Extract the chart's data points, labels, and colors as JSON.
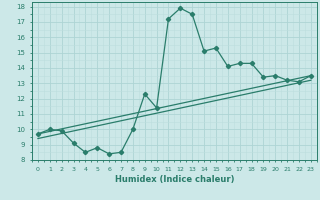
{
  "xlabel": "Humidex (Indice chaleur)",
  "ylabel": "",
  "xlim": [
    -0.5,
    23.5
  ],
  "ylim": [
    8,
    18.3
  ],
  "yticks": [
    8,
    9,
    10,
    11,
    12,
    13,
    14,
    15,
    16,
    17,
    18
  ],
  "xticks": [
    0,
    1,
    2,
    3,
    4,
    5,
    6,
    7,
    8,
    9,
    10,
    11,
    12,
    13,
    14,
    15,
    16,
    17,
    18,
    19,
    20,
    21,
    22,
    23
  ],
  "line_color": "#2a7d6b",
  "bg_color": "#cce8e8",
  "grid_major_color": "#b0d8d8",
  "grid_minor_color": "#c4e2e2",
  "line1_x": [
    0,
    1,
    2,
    3,
    4,
    5,
    6,
    7,
    8,
    9,
    10,
    11,
    12,
    13,
    14,
    15,
    16,
    17,
    18,
    19,
    20,
    21,
    22,
    23
  ],
  "line1_y": [
    9.7,
    10.0,
    9.9,
    9.1,
    8.5,
    8.8,
    8.4,
    8.5,
    10.0,
    12.3,
    11.4,
    17.2,
    17.9,
    17.5,
    15.1,
    15.3,
    14.1,
    14.3,
    14.3,
    13.4,
    13.5,
    13.2,
    13.1,
    13.5
  ],
  "line2_x": [
    0,
    23
  ],
  "line2_y": [
    9.7,
    13.5
  ],
  "line3_x": [
    0,
    23
  ],
  "line3_y": [
    9.4,
    13.2
  ]
}
